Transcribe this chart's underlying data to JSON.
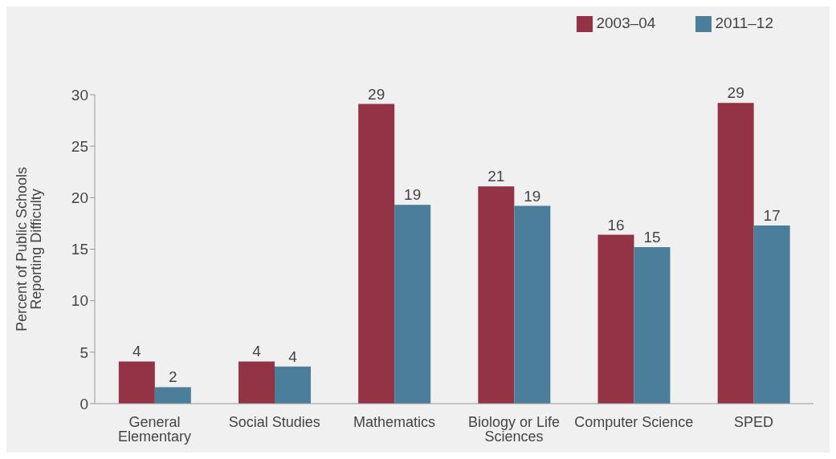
{
  "chart_data": {
    "type": "bar",
    "ylabel": "Percent of Public Schools Reporting Difficulty",
    "categories": [
      "General Elementary",
      "Social Studies",
      "Mathematics",
      "Biology or Life Sciences",
      "Computer Science",
      "SPED"
    ],
    "series": [
      {
        "name": "2003–04",
        "color": "#943345",
        "values": [
          4.1,
          4.1,
          29.1,
          21.1,
          16.4,
          29.2
        ],
        "value_labels": [
          "4",
          "4",
          "29",
          "21",
          "16",
          "29"
        ]
      },
      {
        "name": "2011–12",
        "color": "#4a7e9b",
        "values": [
          1.6,
          3.6,
          19.3,
          19.2,
          15.2,
          17.3
        ],
        "value_labels": [
          "2",
          "4",
          "19",
          "19",
          "15",
          "17"
        ]
      }
    ],
    "ylim": [
      0,
      30
    ],
    "yticks": [
      0,
      5,
      10,
      15,
      20,
      25,
      30
    ],
    "legend": "top right"
  }
}
